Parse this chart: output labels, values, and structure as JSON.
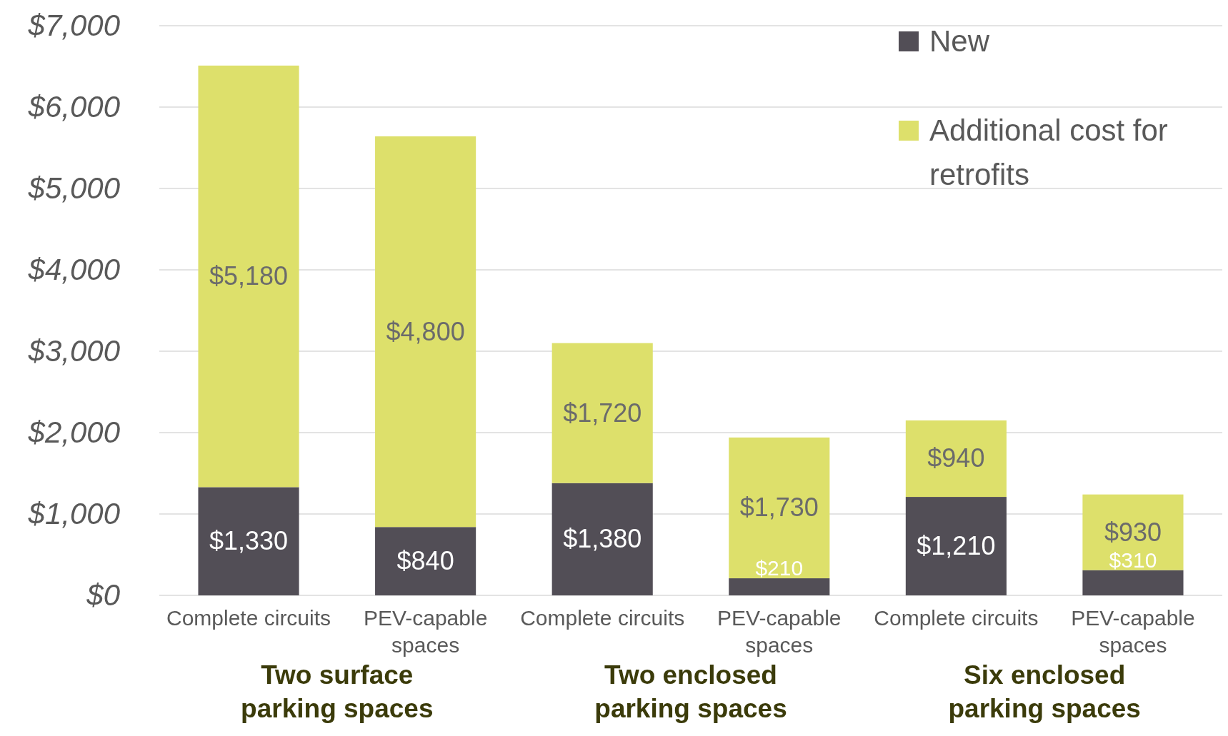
{
  "chart_data": {
    "type": "bar",
    "stacked": true,
    "categories": [
      "Complete circuits",
      "PEV-capable spaces",
      "Complete circuits",
      "PEV-capable spaces",
      "Complete circuits",
      "PEV-capable spaces"
    ],
    "series": [
      {
        "name": "New",
        "color": "#524e56",
        "values": [
          1330,
          840,
          1380,
          210,
          1210,
          310
        ],
        "value_labels": [
          "$1,330",
          "$840",
          "$1,380",
          "$210",
          "$1,210",
          "$310"
        ]
      },
      {
        "name": "Additional cost for retrofits",
        "color": "#dde06b",
        "values": [
          5180,
          4800,
          1720,
          1730,
          940,
          930
        ],
        "value_labels": [
          "$5,180",
          "$4,800",
          "$1,720",
          "$1,730",
          "$940",
          "$930"
        ]
      }
    ],
    "ylim": [
      0,
      7000
    ],
    "yticks": [
      {
        "value": 0,
        "label": "$0"
      },
      {
        "value": 1000,
        "label": "$1,000"
      },
      {
        "value": 2000,
        "label": "$2,000"
      },
      {
        "value": 3000,
        "label": "$3,000"
      },
      {
        "value": 4000,
        "label": "$4,000"
      },
      {
        "value": 5000,
        "label": "$5,000"
      },
      {
        "value": 6000,
        "label": "$6,000"
      },
      {
        "value": 7000,
        "label": "$7,000"
      }
    ],
    "grid": "y",
    "legend": "top right",
    "annotations": [
      "Two surface parking spaces",
      "Two enclosed parking spaces",
      "Six enclosed parking spaces"
    ]
  }
}
